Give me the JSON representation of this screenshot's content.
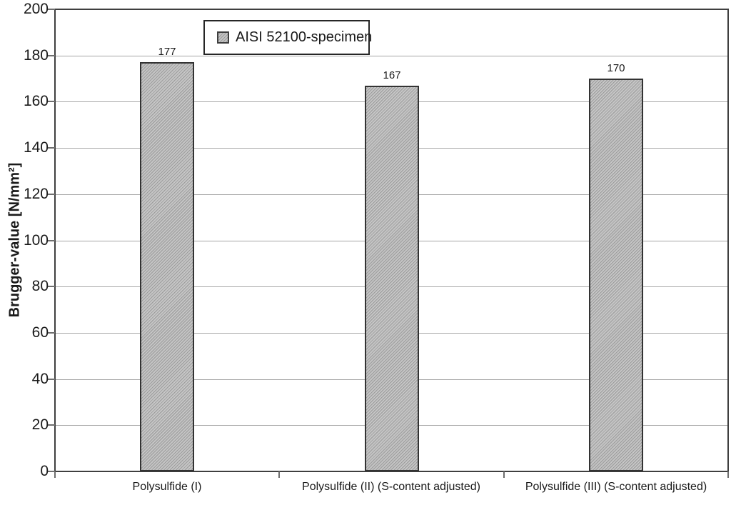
{
  "chart_data": {
    "type": "bar",
    "title": "",
    "categories": [
      "Polysulfide (I)",
      "Polysulfide (II) (S-content adjusted)",
      "Polysulfide (III) (S-content adjusted)"
    ],
    "values": [
      177,
      167,
      170
    ],
    "data_labels": [
      "177",
      "167",
      "170"
    ],
    "series": [
      {
        "name": "AISI 52100-specimen",
        "values": [
          177,
          167,
          170
        ]
      }
    ],
    "xlabel": "",
    "ylabel": "Brugger-value [N/mm²]",
    "ylim": [
      0,
      200
    ],
    "yticks": [
      0,
      20,
      40,
      60,
      80,
      100,
      120,
      140,
      160,
      180,
      200
    ],
    "grid": "horizontal",
    "legend_position": "top-inside-left-of-center"
  },
  "legend": {
    "label": "AISI 52100-specimen",
    "swatch_icon": "hatched-gray-square"
  },
  "colors": {
    "background": "#ffffff",
    "plot_border": "#3f3f3f",
    "gridline": "#a6a6a6",
    "tick": "#6e6e6e",
    "bar_fill_base": "#b5b5b5",
    "bar_stripe_light": "#cacaca",
    "bar_stripe_dark": "#9d9d9d",
    "bar_border": "#333333",
    "text": "#1a1a1a"
  }
}
